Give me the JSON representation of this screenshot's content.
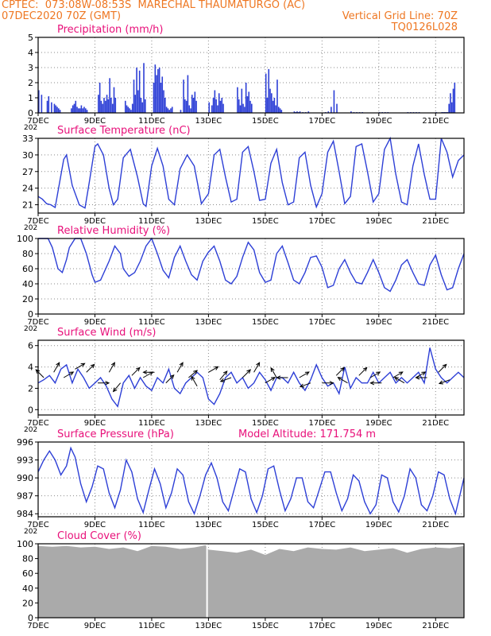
{
  "header": {
    "line1_left": "CPTEC:  073:08W-08:53S  MARECHAL THAUMATURGO (AC)",
    "line2_left": "07DEC2020 70Z (GMT)",
    "line2_right": "Vertical Grid Line: 70Z",
    "line3_right": "TQ0126L028",
    "model_altitude": "Model Altitude: 171.754 m"
  },
  "x_axis": {
    "days": 15,
    "tick_labels": [
      "7DEC",
      "9DEC",
      "11DEC",
      "13DEC",
      "15DEC",
      "17DEC",
      "19DEC",
      "21DEC"
    ],
    "tick_day_offsets": [
      0,
      2,
      4,
      6,
      8,
      10,
      12,
      14
    ],
    "corner_label": "202"
  },
  "colors": {
    "title": "#e8107a",
    "header": "#ee7722",
    "series": "#2d3fd6",
    "cloud": "#aaaaaa",
    "axis": "#000000",
    "grid": "#8a8a8a"
  },
  "chart_data": [
    {
      "type": "bar",
      "title": "Precipitation (mm/h)",
      "ylim": [
        0,
        5
      ],
      "yticks": [
        0,
        1,
        2,
        3,
        4,
        5
      ],
      "grid": true,
      "day_x": [
        0.0,
        0.1,
        0.3,
        0.35,
        0.45,
        0.55,
        0.6,
        0.65,
        0.7,
        0.75,
        1.15,
        1.2,
        1.25,
        1.3,
        1.35,
        1.4,
        1.45,
        1.5,
        1.55,
        1.6,
        1.65,
        1.7,
        2.1,
        2.15,
        2.2,
        2.25,
        2.3,
        2.35,
        2.4,
        2.45,
        2.5,
        2.55,
        2.6,
        2.65,
        2.7,
        3.05,
        3.1,
        3.15,
        3.2,
        3.25,
        3.3,
        3.35,
        3.4,
        3.45,
        3.5,
        3.55,
        3.6,
        3.65,
        3.7,
        3.75,
        4.05,
        4.1,
        4.15,
        4.2,
        4.25,
        4.3,
        4.35,
        4.4,
        4.45,
        4.5,
        4.55,
        4.6,
        4.65,
        4.7,
        5.0,
        5.1,
        5.15,
        5.2,
        5.25,
        5.3,
        5.35,
        5.4,
        5.45,
        5.5,
        5.55,
        6.0,
        6.1,
        6.15,
        6.2,
        6.25,
        6.3,
        6.35,
        6.4,
        6.45,
        6.5,
        7.0,
        7.05,
        7.1,
        7.15,
        7.2,
        7.25,
        7.3,
        7.35,
        7.4,
        7.45,
        7.5,
        8.0,
        8.05,
        8.1,
        8.15,
        8.2,
        8.25,
        8.3,
        8.35,
        8.4,
        8.45,
        8.5,
        8.55,
        9.0,
        9.05,
        9.1,
        9.15,
        9.2,
        9.3,
        9.4,
        9.5,
        10.1,
        10.2,
        10.3,
        10.4,
        10.5,
        11.0,
        11.1,
        11.2,
        11.3,
        11.4,
        12.0,
        12.1,
        12.2,
        12.3,
        13.0,
        13.1,
        13.2,
        13.3,
        13.4,
        14.0,
        14.2,
        14.25,
        14.3,
        14.35,
        14.4,
        14.45,
        14.5,
        14.55,
        14.6,
        14.65
      ],
      "values": [
        1.5,
        1.2,
        0.8,
        1.1,
        0.7,
        0.6,
        0.5,
        0.4,
        0.3,
        0.2,
        0.3,
        0.5,
        0.6,
        0.8,
        0.4,
        0.3,
        0.3,
        0.5,
        0.3,
        0.4,
        0.3,
        0.2,
        1.2,
        2.0,
        0.8,
        0.6,
        1.0,
        0.8,
        1.2,
        0.9,
        2.3,
        1.0,
        0.6,
        1.7,
        1.0,
        0.8,
        0.5,
        0.4,
        0.3,
        0.2,
        0.6,
        2.2,
        1.2,
        3.0,
        1.5,
        2.8,
        1.0,
        0.7,
        3.3,
        0.9,
        2.0,
        3.2,
        2.5,
        2.9,
        3.0,
        2.0,
        2.4,
        1.5,
        1.0,
        0.4,
        0.3,
        0.2,
        0.3,
        0.4,
        0.2,
        2.2,
        0.9,
        0.8,
        2.5,
        0.5,
        0.3,
        1.2,
        1.0,
        1.4,
        0.8,
        0.7,
        0.5,
        1.0,
        1.5,
        0.9,
        0.5,
        1.3,
        0.8,
        1.0,
        0.6,
        1.7,
        0.9,
        0.5,
        1.6,
        0.6,
        0.4,
        2.0,
        1.1,
        1.4,
        0.8,
        0.6,
        2.6,
        1.0,
        2.9,
        1.6,
        1.3,
        0.8,
        1.0,
        0.5,
        2.2,
        0.4,
        0.3,
        0.2,
        0.1,
        0.05,
        0.1,
        0.05,
        0.1,
        0.05,
        0.05,
        0.1,
        0.05,
        0.1,
        0.4,
        1.5,
        0.6,
        0.1,
        0.05,
        0.05,
        0.05,
        0.05,
        0.05,
        0.05,
        0.05,
        0.05,
        0.05,
        0.05,
        0.05,
        0.05,
        0.05,
        0.05,
        0.05,
        0.05,
        0.05,
        0.05,
        0.05,
        0.6,
        1.3,
        0.7,
        1.6,
        2.0,
        2.3,
        2.6,
        2.4,
        1.2
      ]
    },
    {
      "type": "line",
      "title": "Surface Temperature (nC)",
      "ylim": [
        19.5,
        33
      ],
      "yticks": [
        21,
        24,
        27,
        30,
        33
      ],
      "grid": true,
      "day_x": [
        0.0,
        0.15,
        0.3,
        0.45,
        0.6,
        0.9,
        1.0,
        1.2,
        1.45,
        1.65,
        1.8,
        2.0,
        2.1,
        2.3,
        2.5,
        2.65,
        2.8,
        3.0,
        3.25,
        3.5,
        3.7,
        3.8,
        4.0,
        4.2,
        4.4,
        4.6,
        4.8,
        5.0,
        5.25,
        5.5,
        5.75,
        6.0,
        6.2,
        6.4,
        6.6,
        6.8,
        7.0,
        7.2,
        7.4,
        7.6,
        7.8,
        8.0,
        8.2,
        8.4,
        8.6,
        8.8,
        9.0,
        9.2,
        9.4,
        9.6,
        9.8,
        10.0,
        10.2,
        10.4,
        10.6,
        10.8,
        11.0,
        11.2,
        11.4,
        11.6,
        11.8,
        12.0,
        12.2,
        12.4,
        12.6,
        12.8,
        13.0,
        13.2,
        13.4,
        13.6,
        13.8,
        14.0,
        14.2,
        14.4,
        14.6,
        14.8,
        15.0
      ],
      "values": [
        22.5,
        22.0,
        21.2,
        21.0,
        20.5,
        29.2,
        30.0,
        24.5,
        21.0,
        20.4,
        25.0,
        31.5,
        32.0,
        30.0,
        24.0,
        21.0,
        22.0,
        29.5,
        31.0,
        26.0,
        21.2,
        20.7,
        28.0,
        31.2,
        28.0,
        22.0,
        21.0,
        27.5,
        30.0,
        28.0,
        21.2,
        23.0,
        30.0,
        31.0,
        26.0,
        21.5,
        22.0,
        30.5,
        31.5,
        27.0,
        21.8,
        22.0,
        28.5,
        31.0,
        25.0,
        21.0,
        21.5,
        29.5,
        30.5,
        24.5,
        20.6,
        23.0,
        30.5,
        32.5,
        27.0,
        21.2,
        22.5,
        31.5,
        32.0,
        27.0,
        21.5,
        23.0,
        31.0,
        33.0,
        26.5,
        21.5,
        21.0,
        28.0,
        32.0,
        26.5,
        22.0,
        22.0,
        33.0,
        30.5,
        26.0,
        29.0,
        30.0
      ]
    },
    {
      "type": "line",
      "title": "Relative Humidity (%)",
      "ylim": [
        0,
        100
      ],
      "yticks": [
        0,
        20,
        40,
        60,
        80,
        100
      ],
      "grid": true,
      "day_x": [
        0.0,
        0.35,
        0.5,
        0.7,
        0.85,
        1.0,
        1.1,
        1.3,
        1.5,
        1.7,
        1.9,
        2.0,
        2.2,
        2.5,
        2.7,
        2.9,
        3.0,
        3.2,
        3.4,
        3.6,
        3.8,
        4.0,
        4.2,
        4.4,
        4.6,
        4.8,
        5.0,
        5.2,
        5.4,
        5.6,
        5.8,
        6.0,
        6.2,
        6.4,
        6.6,
        6.8,
        7.0,
        7.2,
        7.4,
        7.6,
        7.8,
        8.0,
        8.2,
        8.4,
        8.6,
        8.8,
        9.0,
        9.2,
        9.4,
        9.6,
        9.8,
        10.0,
        10.2,
        10.4,
        10.6,
        10.8,
        11.0,
        11.2,
        11.4,
        11.6,
        11.8,
        12.0,
        12.2,
        12.4,
        12.6,
        12.8,
        13.0,
        13.2,
        13.4,
        13.6,
        13.8,
        14.0,
        14.2,
        14.4,
        14.6,
        14.8,
        15.0
      ],
      "values": [
        100,
        100,
        88,
        60,
        55,
        72,
        88,
        100,
        100,
        80,
        52,
        42,
        45,
        70,
        90,
        80,
        60,
        50,
        55,
        70,
        90,
        100,
        80,
        58,
        48,
        75,
        90,
        70,
        52,
        45,
        70,
        82,
        90,
        70,
        45,
        40,
        50,
        75,
        95,
        85,
        55,
        42,
        45,
        80,
        90,
        68,
        45,
        40,
        55,
        75,
        77,
        62,
        35,
        38,
        60,
        72,
        55,
        42,
        40,
        55,
        72,
        55,
        35,
        30,
        45,
        65,
        72,
        55,
        40,
        38,
        65,
        78,
        52,
        32,
        35,
        60,
        80
      ]
    },
    {
      "type": "line",
      "title": "Surface Wind (m/s)",
      "ylim": [
        -0.5,
        6.5
      ],
      "yticks": [
        0,
        2,
        4,
        6
      ],
      "grid": true,
      "day_x": [
        0.0,
        0.2,
        0.4,
        0.6,
        0.8,
        1.0,
        1.2,
        1.4,
        1.6,
        1.8,
        2.0,
        2.2,
        2.4,
        2.6,
        2.8,
        3.0,
        3.2,
        3.4,
        3.6,
        3.8,
        4.0,
        4.2,
        4.4,
        4.6,
        4.8,
        5.0,
        5.2,
        5.4,
        5.6,
        5.8,
        6.0,
        6.2,
        6.4,
        6.6,
        6.8,
        7.0,
        7.2,
        7.4,
        7.6,
        7.8,
        8.0,
        8.2,
        8.4,
        8.6,
        8.8,
        9.0,
        9.2,
        9.4,
        9.6,
        9.8,
        10.0,
        10.2,
        10.4,
        10.6,
        10.8,
        11.0,
        11.2,
        11.4,
        11.6,
        11.8,
        12.0,
        12.2,
        12.4,
        12.6,
        12.8,
        13.0,
        13.2,
        13.4,
        13.6,
        13.8,
        14.0,
        14.2,
        14.4,
        14.6,
        14.8,
        15.0
      ],
      "values": [
        2.5,
        2.8,
        3.2,
        2.5,
        3.8,
        4.2,
        2.5,
        3.8,
        3.0,
        2.0,
        2.5,
        3.0,
        2.2,
        1.0,
        0.3,
        2.5,
        3.2,
        2.0,
        3.0,
        2.2,
        1.8,
        3.0,
        2.5,
        3.8,
        2.0,
        1.5,
        2.5,
        3.0,
        3.5,
        3.0,
        1.0,
        0.5,
        1.5,
        3.0,
        3.5,
        2.5,
        3.0,
        2.0,
        2.5,
        3.5,
        2.8,
        1.8,
        3.0,
        3.0,
        2.5,
        3.5,
        2.5,
        1.8,
        2.8,
        4.2,
        3.0,
        2.2,
        2.5,
        1.5,
        4.0,
        2.0,
        3.0,
        2.5,
        2.5,
        3.5,
        2.5,
        3.0,
        3.5,
        2.5,
        3.0,
        2.5,
        3.0,
        3.5,
        2.5,
        5.8,
        3.8,
        3.0,
        2.5,
        3.0,
        3.5,
        3.0
      ],
      "vector_day_x": [
        0.2,
        0.55,
        0.9,
        1.3,
        1.7,
        2.1,
        2.5,
        2.9,
        3.3,
        3.7,
        4.1,
        4.5,
        4.9,
        5.3,
        5.6,
        6.0,
        6.4,
        6.8,
        7.2,
        7.6,
        8.0,
        8.4,
        8.8,
        9.2,
        9.6,
        10.0,
        10.5,
        10.9,
        11.3,
        11.7,
        12.1,
        12.5,
        12.9,
        13.3,
        13.7,
        14.1,
        14.5
      ],
      "vector_speed": [
        3.0,
        3.5,
        3.0,
        3.8,
        3.5,
        2.5,
        3.5,
        2.5,
        3.2,
        3.0,
        3.5,
        2.5,
        3.5,
        3.0,
        2.2,
        3.5,
        2.8,
        3.0,
        3.0,
        3.5,
        2.5,
        3.0,
        3.0,
        3.0,
        2.5,
        2.5,
        3.2,
        2.5,
        3.2,
        3.0,
        2.5,
        3.0,
        2.5,
        3.0,
        3.0,
        3.5,
        2.8
      ],
      "vector_dir_deg": [
        135,
        60,
        30,
        30,
        45,
        0,
        60,
        230,
        45,
        30,
        180,
        45,
        60,
        40,
        120,
        30,
        50,
        200,
        45,
        60,
        30,
        120,
        180,
        30,
        200,
        0,
        45,
        150,
        45,
        30,
        180,
        30,
        150,
        30,
        180,
        45,
        200
      ]
    },
    {
      "type": "line",
      "title": "Surface Pressure (hPa)",
      "ylim": [
        983.5,
        996
      ],
      "yticks": [
        984,
        987,
        990,
        993,
        996
      ],
      "grid": true,
      "day_x": [
        0.0,
        0.2,
        0.4,
        0.6,
        0.8,
        1.0,
        1.15,
        1.3,
        1.5,
        1.7,
        1.9,
        2.1,
        2.3,
        2.5,
        2.7,
        2.9,
        3.1,
        3.3,
        3.5,
        3.7,
        3.9,
        4.1,
        4.3,
        4.5,
        4.7,
        4.9,
        5.1,
        5.3,
        5.5,
        5.7,
        5.9,
        6.1,
        6.3,
        6.5,
        6.7,
        6.9,
        7.1,
        7.3,
        7.5,
        7.7,
        7.9,
        8.1,
        8.3,
        8.5,
        8.7,
        8.9,
        9.1,
        9.3,
        9.5,
        9.7,
        9.9,
        10.1,
        10.3,
        10.5,
        10.7,
        10.9,
        11.1,
        11.3,
        11.5,
        11.7,
        11.9,
        12.1,
        12.3,
        12.5,
        12.7,
        12.9,
        13.1,
        13.3,
        13.5,
        13.7,
        13.9,
        14.1,
        14.3,
        14.5,
        14.7,
        14.9,
        15.0
      ],
      "values": [
        991.0,
        993.0,
        994.5,
        993.0,
        990.5,
        992.0,
        995.0,
        993.5,
        989.0,
        986.0,
        988.5,
        992.0,
        991.5,
        987.5,
        985.0,
        988.0,
        993.0,
        991.0,
        986.5,
        984.2,
        988.0,
        991.5,
        989.0,
        985.0,
        987.5,
        991.5,
        990.5,
        986.0,
        984.0,
        987.0,
        990.5,
        992.5,
        990.0,
        986.0,
        984.5,
        988.0,
        991.5,
        991.0,
        986.5,
        984.2,
        987.0,
        991.5,
        992.0,
        988.0,
        984.5,
        986.5,
        990.0,
        990.0,
        986.0,
        985.0,
        988.0,
        991.0,
        991.0,
        987.5,
        984.5,
        986.5,
        990.5,
        989.5,
        986.0,
        984.0,
        985.5,
        990.5,
        990.0,
        986.0,
        984.3,
        987.0,
        991.5,
        990.0,
        985.5,
        984.5,
        987.0,
        991.0,
        990.5,
        986.5,
        984.0,
        988.0,
        990.0
      ]
    },
    {
      "type": "area",
      "title": "Cloud Cover (%)",
      "ylim": [
        0,
        100
      ],
      "yticks": [
        0,
        20,
        40,
        60,
        80,
        100
      ],
      "grid": true,
      "day_x": [
        0.0,
        0.5,
        1.0,
        1.5,
        2.0,
        2.5,
        3.0,
        3.5,
        4.0,
        4.5,
        5.0,
        5.5,
        5.9,
        6.0,
        6.5,
        7.0,
        7.5,
        8.0,
        8.5,
        9.0,
        9.5,
        10.0,
        10.5,
        11.0,
        11.5,
        12.0,
        12.5,
        13.0,
        13.5,
        14.0,
        14.5,
        15.0
      ],
      "values": [
        97,
        96,
        97,
        95,
        96,
        93,
        95,
        90,
        97,
        96,
        93,
        95,
        98,
        92,
        90,
        88,
        92,
        85,
        93,
        90,
        95,
        93,
        92,
        95,
        90,
        92,
        94,
        88,
        93,
        95,
        94,
        97
      ],
      "gap_day": 5.95
    }
  ]
}
